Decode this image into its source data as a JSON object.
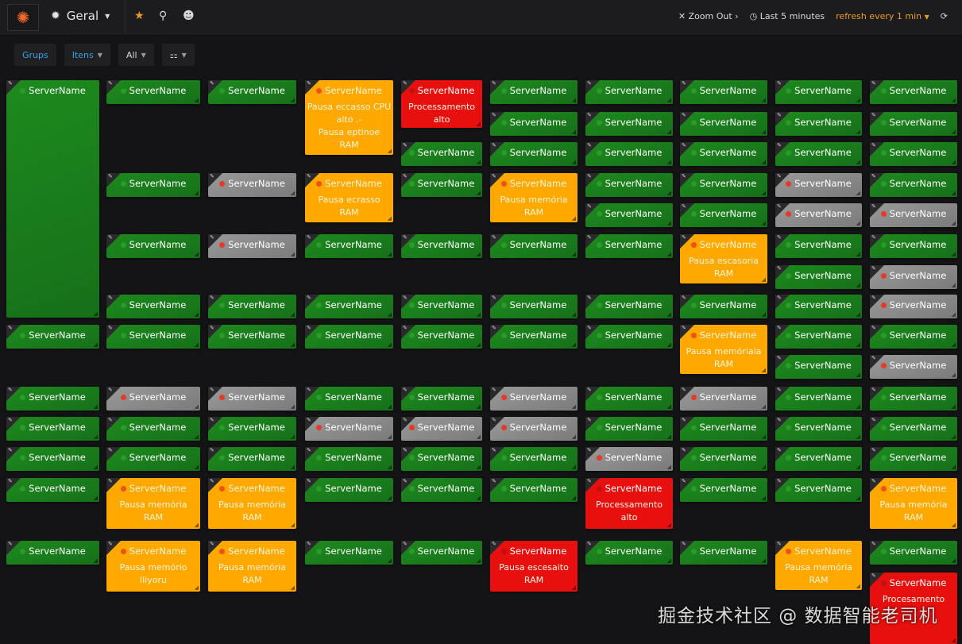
{
  "topbar": {
    "dashboard_title": "Geral",
    "zoom_out": "Zoom Out",
    "time_range": "Last 5 minutes",
    "refresh": "refresh every 1 min"
  },
  "variables": [
    {
      "label": "Grups",
      "dropdown": false
    },
    {
      "label": "Itens",
      "dropdown": true
    },
    {
      "label": "All",
      "dropdown": true
    },
    {
      "label": "⚏",
      "dropdown": true
    }
  ],
  "status_colors": {
    "ok": "#1d8a1d",
    "nodata": "#8a8a8a",
    "warn": "#ffa800",
    "crit": "#e80f0f"
  },
  "tiles": [
    {
      "name": "ServerName",
      "status": "ok"
    },
    {
      "name": "ServerName",
      "status": "ok"
    },
    {
      "name": "ServerName",
      "status": "ok"
    },
    {
      "name": "ServerName",
      "status": "ok"
    },
    {
      "name": "ServerName",
      "status": "ok"
    },
    {
      "name": "ServerName",
      "status": "ok"
    },
    {
      "name": "ServerName",
      "status": "ok"
    },
    {
      "name": "ServerName",
      "status": "ok"
    },
    {
      "name": "ServerName",
      "status": "ok"
    },
    {
      "name": "ServerName",
      "status": "ok"
    },
    {
      "name": "ServerName",
      "status": "ok"
    },
    {
      "name": "ServerName",
      "status": "ok"
    },
    {
      "name": "ServerName",
      "status": "nodata"
    },
    {
      "name": "ServerName",
      "status": "ok"
    },
    {
      "name": "ServerName",
      "status": "ok"
    },
    {
      "name": "ServerName",
      "status": "warn",
      "message": "Pausa memória\nRAM"
    },
    {
      "name": "ServerName",
      "status": "warn",
      "message": "Pausa memório\nlliyoru"
    },
    {
      "name": "ServerName",
      "status": "ok"
    },
    {
      "name": "ServerName",
      "status": "nodata"
    },
    {
      "name": "ServerName",
      "status": "nodata"
    },
    {
      "name": "ServerName",
      "status": "ok"
    },
    {
      "name": "ServerName",
      "status": "ok"
    },
    {
      "name": "ServerName",
      "status": "nodata"
    },
    {
      "name": "ServerName",
      "status": "ok"
    },
    {
      "name": "ServerName",
      "status": "ok"
    },
    {
      "name": "ServerName",
      "status": "warn",
      "message": "Pausa memória\nRAM"
    },
    {
      "name": "ServerName",
      "status": "warn",
      "message": "Pausa memória\nRAM"
    },
    {
      "name": "ServerName",
      "status": "warn",
      "message": "Pausa eccasso CPU\nalto .-\nPausa eptinoe\nRAM"
    },
    {
      "name": "ServerName",
      "status": "warn",
      "message": "Pausa ecrasso\nRAM"
    },
    {
      "name": "ServerName",
      "status": "ok"
    },
    {
      "name": "ServerName",
      "status": "ok"
    },
    {
      "name": "ServerName",
      "status": "ok"
    },
    {
      "name": "ServerName",
      "status": "ok"
    },
    {
      "name": "ServerName",
      "status": "nodata"
    },
    {
      "name": "ServerName",
      "status": "ok"
    },
    {
      "name": "ServerName",
      "status": "ok"
    },
    {
      "name": "ServerName",
      "status": "ok"
    },
    {
      "name": "ServerName",
      "status": "crit",
      "message": "Processamento\nalto"
    },
    {
      "name": "ServerName",
      "status": "ok"
    },
    {
      "name": "ServerName",
      "status": "ok"
    },
    {
      "name": "ServerName",
      "status": "ok"
    },
    {
      "name": "ServerName",
      "status": "ok"
    },
    {
      "name": "ServerName",
      "status": "ok"
    },
    {
      "name": "ServerName",
      "status": "ok"
    },
    {
      "name": "ServerName",
      "status": "nodata"
    },
    {
      "name": "ServerName",
      "status": "ok"
    },
    {
      "name": "ServerName",
      "status": "ok"
    },
    {
      "name": "ServerName",
      "status": "ok"
    },
    {
      "name": "ServerName",
      "status": "ok"
    },
    {
      "name": "ServerName",
      "status": "ok"
    },
    {
      "name": "ServerName",
      "status": "ok"
    },
    {
      "name": "ServerName",
      "status": "warn",
      "message": "Pausa memória\nRAM"
    },
    {
      "name": "ServerName",
      "status": "ok"
    },
    {
      "name": "ServerName",
      "status": "ok"
    },
    {
      "name": "ServerName",
      "status": "ok"
    },
    {
      "name": "ServerName",
      "status": "nodata"
    },
    {
      "name": "ServerName",
      "status": "nodata"
    },
    {
      "name": "ServerName",
      "status": "ok"
    },
    {
      "name": "ServerName",
      "status": "ok"
    },
    {
      "name": "ServerName",
      "status": "crit",
      "message": "Pausa escesaito\nRAM"
    },
    {
      "name": "ServerName",
      "status": "ok"
    },
    {
      "name": "ServerName",
      "status": "ok"
    },
    {
      "name": "ServerName",
      "status": "ok"
    },
    {
      "name": "ServerName",
      "status": "ok"
    },
    {
      "name": "ServerName",
      "status": "ok"
    },
    {
      "name": "ServerName",
      "status": "ok"
    },
    {
      "name": "ServerName",
      "status": "ok"
    },
    {
      "name": "ServerName",
      "status": "ok"
    },
    {
      "name": "ServerName",
      "status": "ok"
    },
    {
      "name": "ServerName",
      "status": "ok"
    },
    {
      "name": "ServerName",
      "status": "nodata"
    },
    {
      "name": "ServerName",
      "status": "crit",
      "message": "Processamento\nalto"
    },
    {
      "name": "ServerName",
      "status": "ok"
    },
    {
      "name": "ServerName",
      "status": "ok"
    },
    {
      "name": "ServerName",
      "status": "ok"
    },
    {
      "name": "ServerName",
      "status": "ok"
    },
    {
      "name": "ServerName",
      "status": "ok"
    },
    {
      "name": "ServerName",
      "status": "ok"
    },
    {
      "name": "ServerName",
      "status": "warn",
      "message": "Pausa escasoria\nRAM"
    },
    {
      "name": "ServerName",
      "status": "ok"
    },
    {
      "name": "ServerName",
      "status": "warn",
      "message": "Pausa memóriaia\nRAM"
    },
    {
      "name": "ServerName",
      "status": "nodata"
    },
    {
      "name": "ServerName",
      "status": "ok"
    },
    {
      "name": "ServerName",
      "status": "ok"
    },
    {
      "name": "ServerName",
      "status": "ok"
    },
    {
      "name": "ServerName",
      "status": "ok"
    },
    {
      "name": "ServerName",
      "status": "ok"
    },
    {
      "name": "ServerName",
      "status": "ok"
    },
    {
      "name": "ServerName",
      "status": "ok"
    },
    {
      "name": "ServerName",
      "status": "nodata"
    },
    {
      "name": "ServerName",
      "status": "nodata"
    },
    {
      "name": "ServerName",
      "status": "ok"
    },
    {
      "name": "ServerName",
      "status": "ok"
    },
    {
      "name": "ServerName",
      "status": "ok"
    },
    {
      "name": "ServerName",
      "status": "ok"
    },
    {
      "name": "ServerName",
      "status": "ok"
    },
    {
      "name": "ServerName",
      "status": "ok"
    },
    {
      "name": "ServerName",
      "status": "ok"
    },
    {
      "name": "ServerName",
      "status": "ok"
    },
    {
      "name": "ServerName",
      "status": "ok"
    },
    {
      "name": "ServerName",
      "status": "warn",
      "message": "Pausa memória\nRAM"
    },
    {
      "name": "ServerName",
      "status": "ok"
    },
    {
      "name": "ServerName",
      "status": "ok"
    },
    {
      "name": "ServerName",
      "status": "ok"
    },
    {
      "name": "ServerName",
      "status": "ok"
    },
    {
      "name": "ServerName",
      "status": "nodata"
    },
    {
      "name": "ServerName",
      "status": "ok"
    },
    {
      "name": "ServerName",
      "status": "nodata"
    },
    {
      "name": "ServerName",
      "status": "nodata"
    },
    {
      "name": "ServerName",
      "status": "ok"
    },
    {
      "name": "ServerName",
      "status": "nodata"
    },
    {
      "name": "ServerName",
      "status": "ok"
    },
    {
      "name": "ServerName",
      "status": "ok"
    },
    {
      "name": "ServerName",
      "status": "ok"
    },
    {
      "name": "ServerName",
      "status": "warn",
      "message": "Pausa memória\nRAM"
    },
    {
      "name": "ServerName",
      "status": "ok"
    },
    {
      "name": "ServerName",
      "status": "crit",
      "message": "Procesamento"
    }
  ],
  "watermark": "掘金技术社区 @ 数据智能老司机"
}
